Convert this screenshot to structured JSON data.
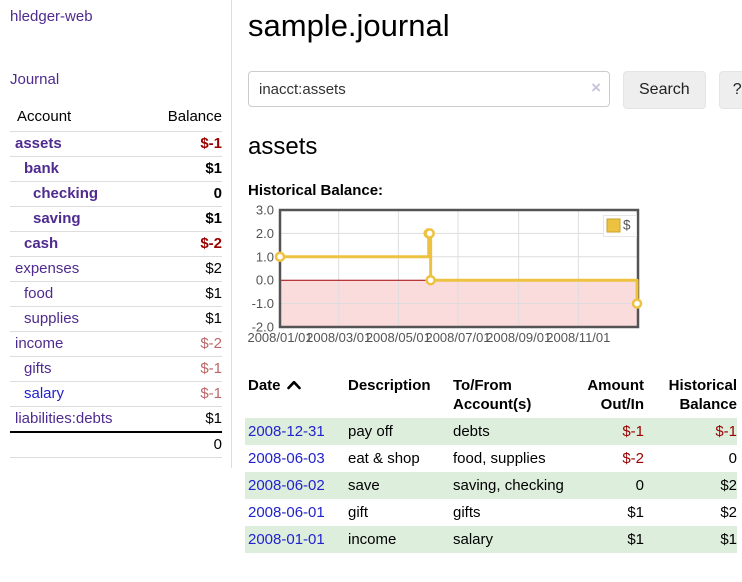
{
  "colors": {
    "accent_purple": "#4f2b8f",
    "link_blue": "#2222cc",
    "negative_strong": "#990000",
    "negative_soft": "#bb6767",
    "row_stripe_green": "#deeedd"
  },
  "sidebar": {
    "app_title": "hledger-web",
    "nav": {
      "journal_label": "Journal"
    },
    "accounts_table": {
      "headers": {
        "account": "Account",
        "balance": "Balance"
      },
      "rows": [
        {
          "name": "assets",
          "indent": 0,
          "bold": true,
          "balance": "$-1",
          "balance_style": "neg-strong"
        },
        {
          "name": "bank",
          "indent": 1,
          "bold": true,
          "balance": "$1",
          "balance_style": "pos"
        },
        {
          "name": "checking",
          "indent": 2,
          "bold": true,
          "balance": "0",
          "balance_style": "pos"
        },
        {
          "name": "saving",
          "indent": 2,
          "bold": true,
          "balance": "$1",
          "balance_style": "pos"
        },
        {
          "name": "cash",
          "indent": 1,
          "bold": true,
          "balance": "$-2",
          "balance_style": "neg-strong"
        },
        {
          "name": "expenses",
          "indent": 0,
          "bold": false,
          "balance": "$2",
          "balance_style": "pos"
        },
        {
          "name": "food",
          "indent": 1,
          "bold": false,
          "balance": "$1",
          "balance_style": "pos"
        },
        {
          "name": "supplies",
          "indent": 1,
          "bold": false,
          "balance": "$1",
          "balance_style": "pos"
        },
        {
          "name": "income",
          "indent": 0,
          "bold": false,
          "balance": "$-2",
          "balance_style": "neg-soft"
        },
        {
          "name": "gifts",
          "indent": 1,
          "bold": false,
          "balance": "$-1",
          "balance_style": "neg-soft"
        },
        {
          "name": "salary",
          "indent": 1,
          "bold": false,
          "link_color": "blue",
          "balance": "$-1",
          "balance_style": "neg-soft"
        },
        {
          "name": "liabilities:debts",
          "indent": 0,
          "bold": false,
          "balance": "$1",
          "balance_style": "pos"
        }
      ],
      "total": "0"
    }
  },
  "header": {
    "title": "sample.journal"
  },
  "search": {
    "value": "inacct:assets",
    "clear_icon": "×",
    "search_button": "Search",
    "help_button": "?"
  },
  "account_page": {
    "heading": "assets",
    "chart_label": "Historical Balance:"
  },
  "chart_data": {
    "type": "line",
    "step": true,
    "title": "Historical Balance:",
    "series": [
      {
        "name": "$",
        "points": [
          [
            "2008-01-01",
            1
          ],
          [
            "2008-06-01",
            2
          ],
          [
            "2008-06-02",
            2
          ],
          [
            "2008-06-03",
            0
          ],
          [
            "2008-12-31",
            -1
          ]
        ]
      }
    ],
    "x_range": [
      "2008-01-01",
      "2009-01-01"
    ],
    "ylim": [
      -2,
      3
    ],
    "x_tick_labels": [
      "2008/01/01",
      "2008/03/01",
      "2008/05/01",
      "2008/07/01",
      "2008/09/01",
      "2008/11/01"
    ],
    "y_tick_labels": [
      "3.0",
      "2.0",
      "1.0",
      "0.0",
      "-1.0",
      "-2.0"
    ],
    "legend": {
      "position": "top-right",
      "label": "$"
    },
    "grid": true,
    "colors": {
      "line": "#edc240",
      "marker_fill": "#ffffff",
      "zero_line": "#a40000",
      "negative_fill": "#fbdcdc",
      "border": "#545454",
      "gridline": "#dddddd",
      "tick_text": "#545454",
      "legend_border": "#e6e6e6"
    }
  },
  "transactions": {
    "columns": [
      {
        "label": "Date",
        "sort": "ascending"
      },
      {
        "label": "Description"
      },
      {
        "label": "To/From Account(s)"
      },
      {
        "label": "Amount Out/In",
        "align": "right"
      },
      {
        "label": "Historical Balance",
        "align": "right"
      }
    ],
    "rows": [
      {
        "date": "2008-12-31",
        "description": "pay off",
        "accounts": "debts",
        "amount": "$-1",
        "amount_negative": true,
        "balance": "$-1",
        "balance_negative": true
      },
      {
        "date": "2008-06-03",
        "description": "eat & shop",
        "accounts": "food, supplies",
        "amount": "$-2",
        "amount_negative": true,
        "balance": "0",
        "balance_negative": false
      },
      {
        "date": "2008-06-02",
        "description": "save",
        "accounts": "saving, checking",
        "amount": "0",
        "amount_negative": false,
        "balance": "$2",
        "balance_negative": false
      },
      {
        "date": "2008-06-01",
        "description": "gift",
        "accounts": "gifts",
        "amount": "$1",
        "amount_negative": false,
        "balance": "$2",
        "balance_negative": false
      },
      {
        "date": "2008-01-01",
        "description": "income",
        "accounts": "salary",
        "amount": "$1",
        "amount_negative": false,
        "balance": "$1",
        "balance_negative": false
      }
    ]
  }
}
